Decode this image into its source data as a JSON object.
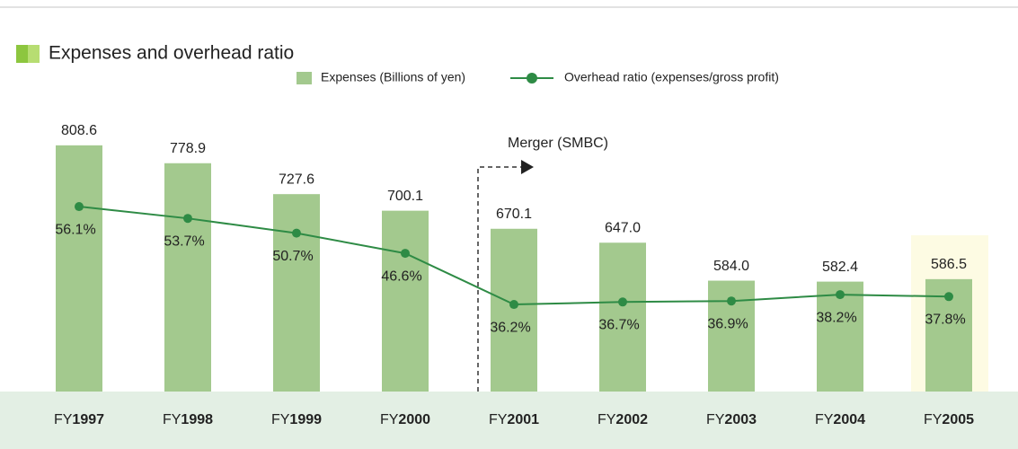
{
  "chart_data": {
    "type": "bar_line",
    "title": "Expenses and overhead ratio",
    "annotation": "Merger (SMBC)",
    "categories": [
      "FY1997",
      "FY1998",
      "FY1999",
      "FY2000",
      "FY2001",
      "FY2002",
      "FY2003",
      "FY2004",
      "FY2005"
    ],
    "ylim": [
      400,
      1000
    ],
    "y2lim": [
      18.5,
      92
    ],
    "series": [
      {
        "name": "Expenses (Billions of yen)",
        "type": "bar",
        "color": "#a3c98e",
        "values": [
          808.6,
          778.9,
          727.6,
          700.1,
          670.1,
          647,
          584,
          582.4,
          586.5
        ],
        "value_labels": [
          "808.6",
          "778.9",
          "727.6",
          "700.1",
          "670.1",
          "647.0",
          "584.0",
          "582.4",
          "586.5"
        ]
      },
      {
        "name": "Overhead ratio (expenses/gross profit)",
        "type": "line",
        "axis": "y2",
        "color": "#2e8b45",
        "values": [
          56.1,
          53.7,
          50.7,
          46.6,
          36.2,
          36.7,
          36.9,
          38.2,
          37.8
        ],
        "value_labels": [
          "56.1%",
          "53.7%",
          "50.7%",
          "46.6%",
          "36.2%",
          "36.7%",
          "36.9%",
          "38.2%",
          "37.8%"
        ]
      }
    ]
  }
}
